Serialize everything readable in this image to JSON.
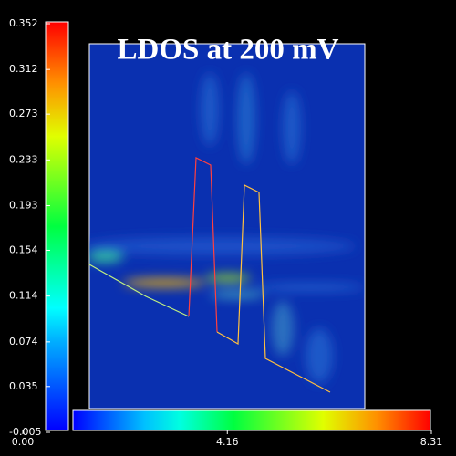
{
  "chart_data": {
    "type": "heatmap",
    "title": "LDOS at 200 mV",
    "ylim": [
      -0.005,
      0.352
    ],
    "yticks": [
      -0.005,
      0.035,
      0.074,
      0.114,
      0.154,
      0.193,
      0.233,
      0.273,
      0.312,
      0.352
    ],
    "xlim": [
      0,
      8.31
    ],
    "xticks": [
      {
        "value": 0,
        "label": "0.00"
      },
      4.16,
      8.31
    ]
  }
}
